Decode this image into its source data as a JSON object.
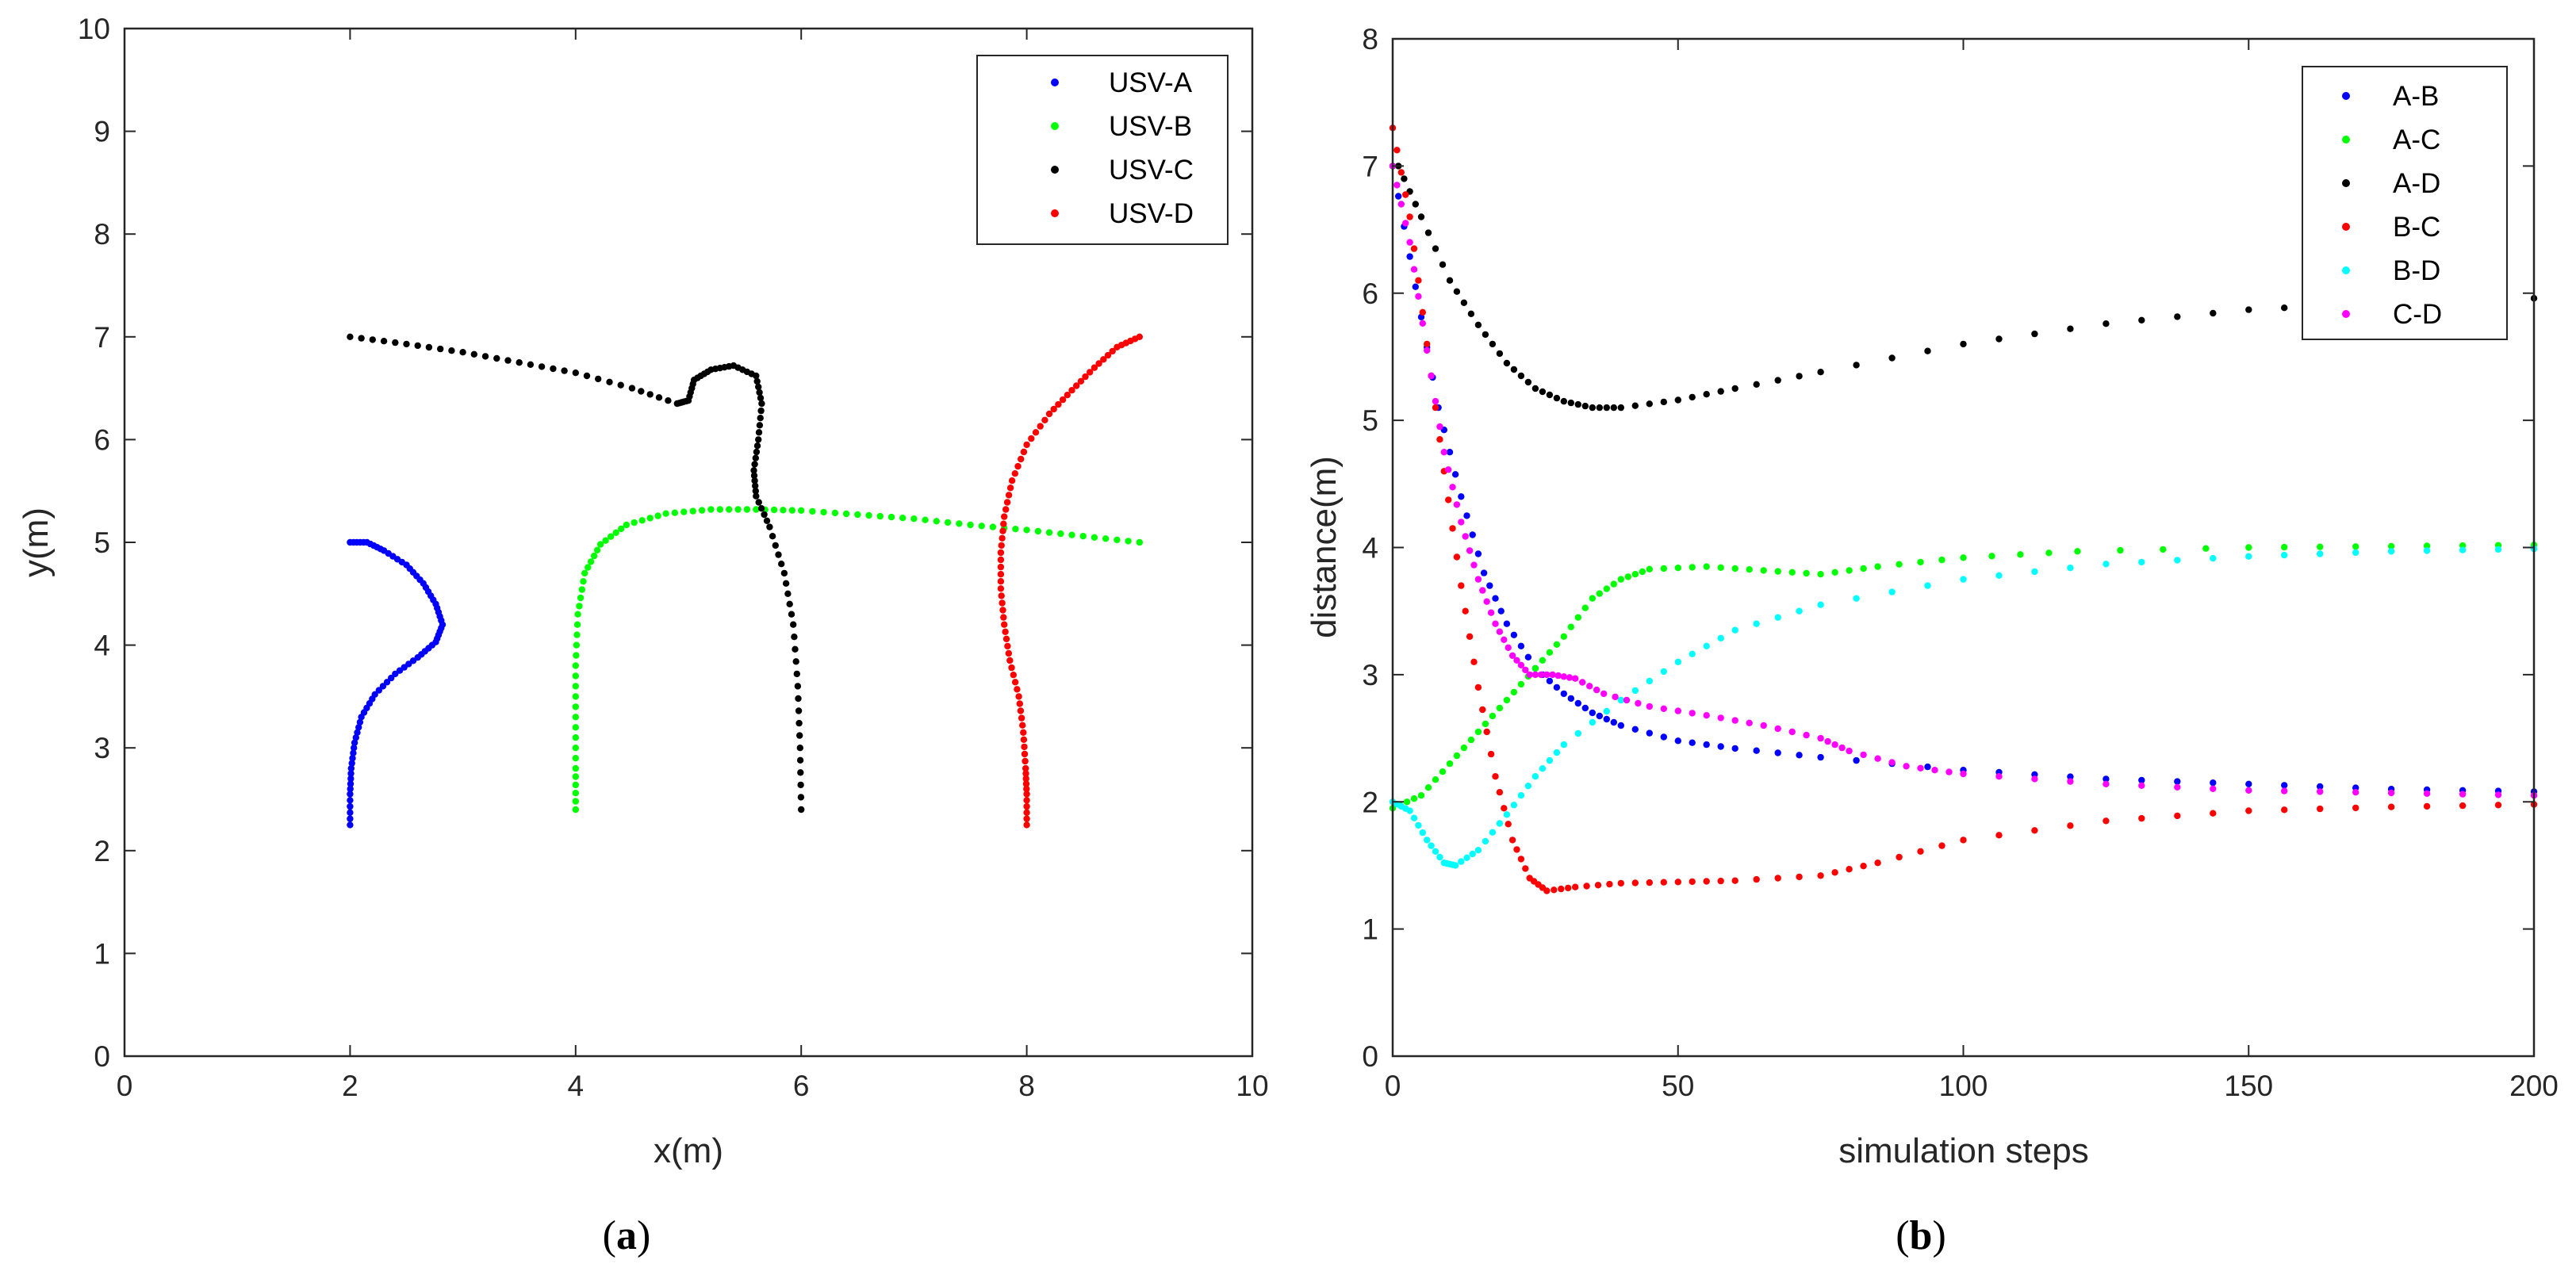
{
  "chart_data": [
    {
      "type": "scatter",
      "panel": "a",
      "caption_open": "(",
      "caption_letter": "a",
      "caption_close": ")",
      "xlabel": "x(m)",
      "ylabel": "y(m)",
      "xlim": [
        0,
        10
      ],
      "ylim": [
        0,
        10
      ],
      "xticks": [
        0,
        2,
        4,
        6,
        8,
        10
      ],
      "yticks": [
        0,
        1,
        2,
        3,
        4,
        5,
        6,
        7,
        8,
        9,
        10
      ],
      "legend": "top-right",
      "series": [
        {
          "name": "USV-A",
          "color": "#0000ff",
          "points": [
            [
              2.0,
              5.0
            ],
            [
              2.15,
              5.0
            ],
            [
              2.3,
              4.92
            ],
            [
              2.5,
              4.78
            ],
            [
              2.65,
              4.6
            ],
            [
              2.76,
              4.4
            ],
            [
              2.82,
              4.2
            ],
            [
              2.76,
              4.03
            ],
            [
              2.6,
              3.88
            ],
            [
              2.4,
              3.72
            ],
            [
              2.22,
              3.52
            ],
            [
              2.1,
              3.3
            ],
            [
              2.04,
              3.05
            ],
            [
              2.01,
              2.8
            ],
            [
              2.0,
              2.55
            ],
            [
              2.0,
              2.25
            ]
          ]
        },
        {
          "name": "USV-B",
          "color": "#00ff00",
          "points": [
            [
              4.0,
              2.4
            ],
            [
              4.0,
              2.8
            ],
            [
              4.0,
              3.3
            ],
            [
              4.0,
              3.8
            ],
            [
              4.02,
              4.3
            ],
            [
              4.08,
              4.7
            ],
            [
              4.22,
              4.98
            ],
            [
              4.45,
              5.17
            ],
            [
              4.8,
              5.28
            ],
            [
              5.2,
              5.32
            ],
            [
              5.6,
              5.32
            ],
            [
              6.0,
              5.31
            ],
            [
              6.5,
              5.27
            ],
            [
              7.0,
              5.23
            ],
            [
              7.5,
              5.17
            ],
            [
              8.0,
              5.12
            ],
            [
              8.5,
              5.06
            ],
            [
              9.0,
              5.0
            ]
          ]
        },
        {
          "name": "USV-C",
          "color": "#000000",
          "points": [
            [
              2.0,
              7.0
            ],
            [
              2.5,
              6.93
            ],
            [
              3.0,
              6.85
            ],
            [
              3.5,
              6.75
            ],
            [
              4.0,
              6.65
            ],
            [
              4.5,
              6.5
            ],
            [
              4.9,
              6.35
            ],
            [
              5.0,
              6.38
            ],
            [
              5.05,
              6.58
            ],
            [
              5.2,
              6.68
            ],
            [
              5.4,
              6.72
            ],
            [
              5.6,
              6.62
            ],
            [
              5.65,
              6.35
            ],
            [
              5.62,
              6.0
            ],
            [
              5.58,
              5.7
            ],
            [
              5.6,
              5.45
            ],
            [
              5.72,
              5.15
            ],
            [
              5.85,
              4.7
            ],
            [
              5.93,
              4.2
            ],
            [
              5.97,
              3.6
            ],
            [
              5.99,
              3.0
            ],
            [
              6.0,
              2.4
            ]
          ]
        },
        {
          "name": "USV-D",
          "color": "#ff0000",
          "points": [
            [
              9.0,
              7.0
            ],
            [
              8.8,
              6.9
            ],
            [
              8.6,
              6.7
            ],
            [
              8.4,
              6.48
            ],
            [
              8.2,
              6.25
            ],
            [
              8.0,
              5.95
            ],
            [
              7.87,
              5.6
            ],
            [
              7.8,
              5.25
            ],
            [
              7.77,
              4.9
            ],
            [
              7.77,
              4.55
            ],
            [
              7.8,
              4.2
            ],
            [
              7.85,
              3.85
            ],
            [
              7.93,
              3.5
            ],
            [
              7.97,
              3.15
            ],
            [
              7.99,
              2.8
            ],
            [
              8.0,
              2.55
            ],
            [
              8.0,
              2.25
            ]
          ]
        }
      ]
    },
    {
      "type": "scatter",
      "panel": "b",
      "caption_open": "(",
      "caption_letter": "b",
      "caption_close": ")",
      "xlabel": "simulation steps",
      "ylabel": "distance(m)",
      "xlim": [
        0,
        200
      ],
      "ylim": [
        0,
        8
      ],
      "xticks": [
        0,
        50,
        100,
        150,
        200
      ],
      "yticks": [
        0,
        1,
        2,
        3,
        4,
        5,
        6,
        7,
        8
      ],
      "legend": "top-right",
      "series": [
        {
          "name": "A-B",
          "color": "#0000ff",
          "points": [
            [
              0,
              7.0
            ],
            [
              4,
              6.05
            ],
            [
              8,
              5.1
            ],
            [
              12,
              4.4
            ],
            [
              16,
              3.8
            ],
            [
              20,
              3.4
            ],
            [
              25,
              3.05
            ],
            [
              30,
              2.85
            ],
            [
              35,
              2.7
            ],
            [
              40,
              2.6
            ],
            [
              50,
              2.48
            ],
            [
              60,
              2.42
            ],
            [
              75,
              2.35
            ],
            [
              100,
              2.25
            ],
            [
              125,
              2.18
            ],
            [
              150,
              2.14
            ],
            [
              175,
              2.1
            ],
            [
              200,
              2.08
            ]
          ]
        },
        {
          "name": "A-C",
          "color": "#00ff00",
          "points": [
            [
              0,
              1.95
            ],
            [
              5,
              2.05
            ],
            [
              10,
              2.3
            ],
            [
              15,
              2.55
            ],
            [
              20,
              2.8
            ],
            [
              25,
              3.05
            ],
            [
              30,
              3.3
            ],
            [
              35,
              3.6
            ],
            [
              40,
              3.75
            ],
            [
              45,
              3.83
            ],
            [
              55,
              3.85
            ],
            [
              65,
              3.82
            ],
            [
              75,
              3.79
            ],
            [
              85,
              3.85
            ],
            [
              100,
              3.92
            ],
            [
              120,
              3.97
            ],
            [
              150,
              4.0
            ],
            [
              175,
              4.01
            ],
            [
              200,
              4.02
            ]
          ]
        },
        {
          "name": "A-D",
          "color": "#000000",
          "points": [
            [
              1,
              7.0
            ],
            [
              5,
              6.6
            ],
            [
              10,
              6.1
            ],
            [
              15,
              5.75
            ],
            [
              20,
              5.45
            ],
            [
              25,
              5.25
            ],
            [
              30,
              5.15
            ],
            [
              35,
              5.1
            ],
            [
              40,
              5.1
            ],
            [
              50,
              5.16
            ],
            [
              60,
              5.25
            ],
            [
              75,
              5.38
            ],
            [
              100,
              5.6
            ],
            [
              125,
              5.76
            ],
            [
              150,
              5.87
            ],
            [
              175,
              5.93
            ],
            [
              200,
              5.96
            ]
          ]
        },
        {
          "name": "B-C",
          "color": "#ff0000",
          "points": [
            [
              0,
              7.3
            ],
            [
              3,
              6.6
            ],
            [
              6,
              5.6
            ],
            [
              9,
              4.6
            ],
            [
              12,
              3.7
            ],
            [
              15,
              2.9
            ],
            [
              18,
              2.2
            ],
            [
              21,
              1.7
            ],
            [
              24,
              1.4
            ],
            [
              27,
              1.3
            ],
            [
              32,
              1.33
            ],
            [
              40,
              1.36
            ],
            [
              50,
              1.37
            ],
            [
              60,
              1.38
            ],
            [
              75,
              1.42
            ],
            [
              85,
              1.52
            ],
            [
              100,
              1.7
            ],
            [
              125,
              1.85
            ],
            [
              150,
              1.93
            ],
            [
              175,
              1.96
            ],
            [
              200,
              1.98
            ]
          ]
        },
        {
          "name": "B-D",
          "color": "#00ffff",
          "points": [
            [
              0,
              2.0
            ],
            [
              3,
              1.93
            ],
            [
              6,
              1.7
            ],
            [
              9,
              1.52
            ],
            [
              11,
              1.5
            ],
            [
              15,
              1.62
            ],
            [
              20,
              1.9
            ],
            [
              25,
              2.2
            ],
            [
              30,
              2.45
            ],
            [
              40,
              2.8
            ],
            [
              50,
              3.1
            ],
            [
              60,
              3.35
            ],
            [
              75,
              3.55
            ],
            [
              100,
              3.75
            ],
            [
              125,
              3.87
            ],
            [
              150,
              3.93
            ],
            [
              175,
              3.97
            ],
            [
              200,
              3.99
            ]
          ]
        },
        {
          "name": "C-D",
          "color": "#ff00ff",
          "points": [
            [
              0,
              7.0
            ],
            [
              3,
              6.4
            ],
            [
              6,
              5.55
            ],
            [
              9,
              4.75
            ],
            [
              12,
              4.2
            ],
            [
              15,
              3.75
            ],
            [
              18,
              3.4
            ],
            [
              21,
              3.15
            ],
            [
              24,
              3.0
            ],
            [
              28,
              3.0
            ],
            [
              32,
              2.97
            ],
            [
              37,
              2.85
            ],
            [
              45,
              2.75
            ],
            [
              55,
              2.68
            ],
            [
              65,
              2.6
            ],
            [
              75,
              2.5
            ],
            [
              80,
              2.4
            ],
            [
              90,
              2.28
            ],
            [
              100,
              2.22
            ],
            [
              125,
              2.14
            ],
            [
              150,
              2.09
            ],
            [
              175,
              2.07
            ],
            [
              200,
              2.05
            ]
          ]
        }
      ]
    }
  ]
}
